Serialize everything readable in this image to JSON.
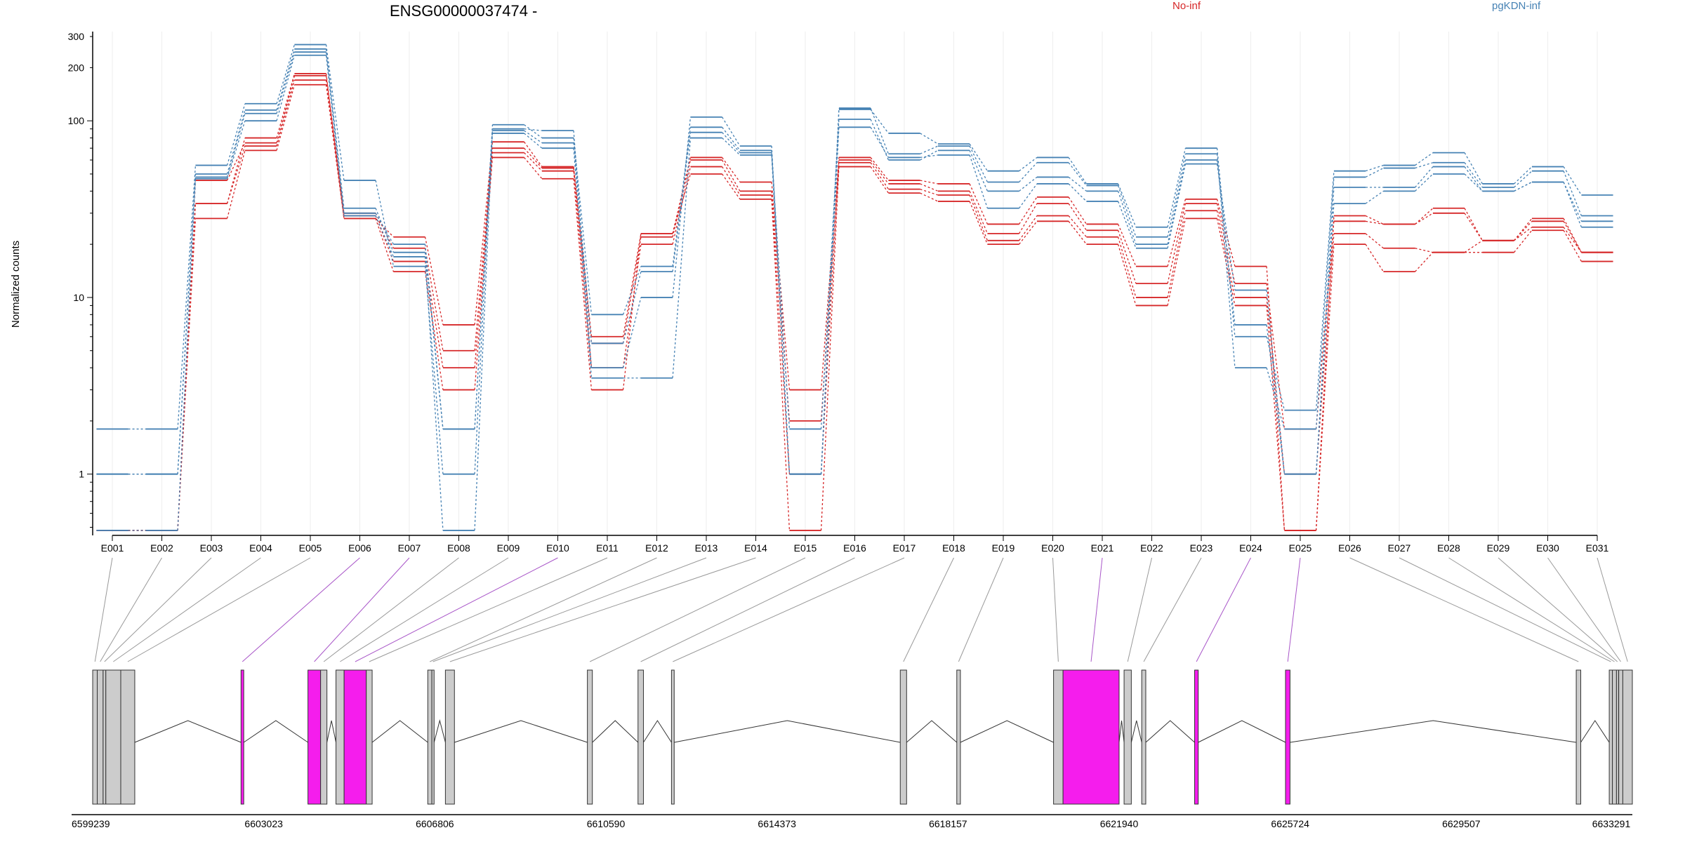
{
  "title": "ENSG00000037474 -",
  "chart_data": {
    "type": "line",
    "title": "ENSG00000037474 -",
    "ylabel": "Normalized counts",
    "yscale": "log",
    "ylim": [
      0.45,
      320
    ],
    "yticks": [
      1,
      10,
      100,
      200,
      300
    ],
    "grid": "vertical-light",
    "legend_position": "top",
    "categories": [
      "E001",
      "E002",
      "E003",
      "E004",
      "E005",
      "E006",
      "E007",
      "E008",
      "E009",
      "E010",
      "E011",
      "E012",
      "E013",
      "E014",
      "E015",
      "E016",
      "E017",
      "E018",
      "E019",
      "E020",
      "E021",
      "E022",
      "E023",
      "E024",
      "E025",
      "E026",
      "E027",
      "E028",
      "E029",
      "E030",
      "E031"
    ],
    "groups": [
      {
        "name": "No-inf",
        "color": "#d62728"
      },
      {
        "name": "pgKDN-inf",
        "color": "#4682b4"
      }
    ],
    "series": [
      {
        "group": "No-inf",
        "values": [
          0.48,
          0.48,
          28,
          68,
          160,
          28,
          14,
          3,
          62,
          47,
          3,
          23,
          50,
          36,
          0.48,
          55,
          39,
          35,
          20,
          27,
          20,
          9,
          28,
          9,
          0.48,
          20,
          14,
          18,
          18,
          24,
          16
        ]
      },
      {
        "group": "No-inf",
        "values": [
          0.48,
          0.48,
          34,
          72,
          170,
          29,
          16,
          4,
          66,
          52,
          4,
          20,
          55,
          38,
          1,
          58,
          41,
          38,
          21,
          29,
          22,
          10,
          31,
          10,
          1,
          23,
          19,
          18,
          21,
          25,
          18
        ]
      },
      {
        "group": "No-inf",
        "values": [
          0.48,
          0.48,
          46,
          75,
          180,
          30,
          19,
          5,
          70,
          54,
          5.5,
          22,
          60,
          40,
          2,
          60,
          44,
          40,
          23,
          34,
          24,
          12,
          34,
          12,
          1.8,
          27,
          26,
          30,
          21,
          27,
          18
        ]
      },
      {
        "group": "No-inf",
        "values": [
          0.48,
          0.48,
          34,
          80,
          185,
          28,
          22,
          7,
          76,
          55,
          6,
          23,
          62,
          45,
          3,
          62,
          46,
          44,
          26,
          37,
          26,
          15,
          36,
          15,
          0.48,
          29,
          26,
          32,
          21,
          28,
          18
        ]
      },
      {
        "group": "pgKDN-inf",
        "values": [
          1.8,
          1.8,
          56,
          125,
          270,
          46,
          15,
          1,
          90,
          88,
          4,
          10,
          105,
          72,
          1,
          116,
          85,
          74,
          52,
          62,
          44,
          25,
          70,
          6,
          2.3,
          52,
          56,
          66,
          44,
          55,
          38
        ]
      },
      {
        "group": "pgKDN-inf",
        "values": [
          1,
          1,
          50,
          115,
          255,
          32,
          18,
          1.8,
          95,
          80,
          8,
          15,
          92,
          68,
          1,
          118,
          65,
          72,
          45,
          58,
          43,
          22,
          65,
          4,
          1.8,
          48,
          54,
          58,
          42,
          52,
          29
        ]
      },
      {
        "group": "pgKDN-inf",
        "values": [
          1,
          1,
          48,
          110,
          245,
          30,
          20,
          1.8,
          88,
          75,
          5.5,
          14,
          86,
          66,
          1.8,
          102,
          60,
          68,
          40,
          48,
          40,
          20,
          60,
          7,
          1,
          42,
          42,
          55,
          40,
          45,
          27
        ]
      },
      {
        "group": "pgKDN-inf",
        "values": [
          0.48,
          0.48,
          47,
          100,
          235,
          29,
          17,
          0.48,
          85,
          70,
          3.5,
          3.5,
          80,
          64,
          1,
          92,
          62,
          64,
          32,
          44,
          35,
          19,
          57,
          11,
          1,
          34,
          40,
          50,
          40,
          45,
          25
        ]
      }
    ],
    "xaxis_ticks": [
      "6599239",
      "6603023",
      "6606806",
      "6610590",
      "6614373",
      "6618157",
      "6621940",
      "6625724",
      "6629507",
      "6633291"
    ],
    "exon_bins": [
      {
        "id": "E001",
        "start": 6599239,
        "end": 6599340,
        "highlight": false
      },
      {
        "id": "E002",
        "start": 6599340,
        "end": 6599470,
        "highlight": false
      },
      {
        "id": "E003",
        "start": 6599470,
        "end": 6599530,
        "highlight": false
      },
      {
        "id": "E004",
        "start": 6599530,
        "end": 6599860,
        "highlight": false
      },
      {
        "id": "E005",
        "start": 6599860,
        "end": 6600170,
        "highlight": false
      },
      {
        "id": "E006",
        "start": 6602520,
        "end": 6602580,
        "highlight": true
      },
      {
        "id": "E007",
        "start": 6604000,
        "end": 6604280,
        "highlight": true
      },
      {
        "id": "E008",
        "start": 6604280,
        "end": 6604420,
        "highlight": false
      },
      {
        "id": "E009",
        "start": 6604620,
        "end": 6604800,
        "highlight": false
      },
      {
        "id": "E010",
        "start": 6604800,
        "end": 6605290,
        "highlight": true
      },
      {
        "id": "E011",
        "start": 6605290,
        "end": 6605420,
        "highlight": false
      },
      {
        "id": "E012",
        "start": 6606650,
        "end": 6606740,
        "highlight": false
      },
      {
        "id": "E013",
        "start": 6606740,
        "end": 6606790,
        "highlight": false
      },
      {
        "id": "E014",
        "start": 6607040,
        "end": 6607240,
        "highlight": false
      },
      {
        "id": "E015",
        "start": 6610180,
        "end": 6610290,
        "highlight": false
      },
      {
        "id": "E016",
        "start": 6611300,
        "end": 6611420,
        "highlight": false
      },
      {
        "id": "E017",
        "start": 6612040,
        "end": 6612100,
        "highlight": false
      },
      {
        "id": "E018",
        "start": 6617100,
        "end": 6617240,
        "highlight": false
      },
      {
        "id": "E019",
        "start": 6618350,
        "end": 6618430,
        "highlight": false
      },
      {
        "id": "E020",
        "start": 6620490,
        "end": 6620700,
        "highlight": false
      },
      {
        "id": "E021",
        "start": 6620700,
        "end": 6621940,
        "highlight": true
      },
      {
        "id": "E022",
        "start": 6622050,
        "end": 6622210,
        "highlight": false
      },
      {
        "id": "E023",
        "start": 6622440,
        "end": 6622530,
        "highlight": false
      },
      {
        "id": "E024",
        "start": 6623610,
        "end": 6623690,
        "highlight": true
      },
      {
        "id": "E025",
        "start": 6625620,
        "end": 6625720,
        "highlight": true
      },
      {
        "id": "E026",
        "start": 6632050,
        "end": 6632150,
        "highlight": false
      },
      {
        "id": "E027",
        "start": 6632780,
        "end": 6632850,
        "highlight": false
      },
      {
        "id": "E028",
        "start": 6632850,
        "end": 6632940,
        "highlight": false
      },
      {
        "id": "E029",
        "start": 6632940,
        "end": 6632980,
        "highlight": false
      },
      {
        "id": "E030",
        "start": 6632990,
        "end": 6633080,
        "highlight": false
      },
      {
        "id": "E031",
        "start": 6633080,
        "end": 6633291,
        "highlight": false
      }
    ],
    "colors": {
      "exon_fill": "#cccccc",
      "highlight_fill": "#f51ded",
      "connector": "#999999",
      "highlight_connector": "#a855c8"
    }
  }
}
